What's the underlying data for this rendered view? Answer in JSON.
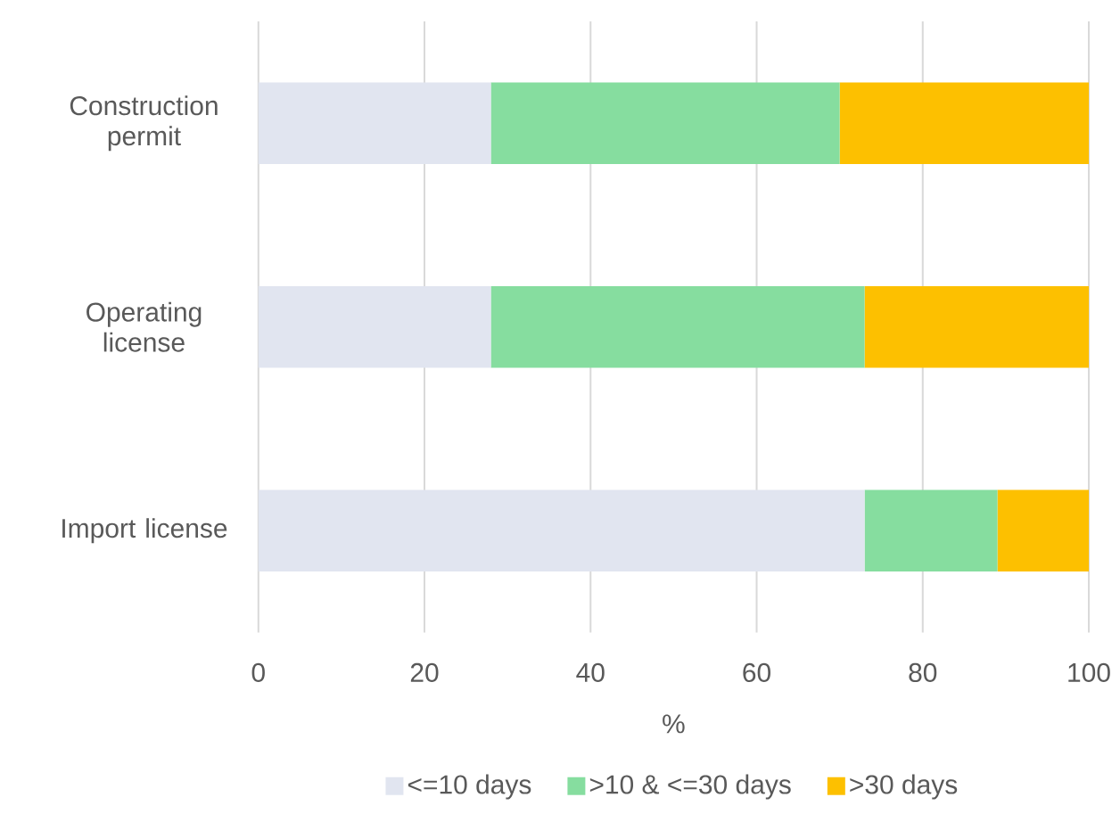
{
  "chart_data": {
    "type": "bar",
    "orientation": "horizontal",
    "stacked": true,
    "xlabel": "%",
    "categories": [
      "Construction permit",
      "Operating license",
      "Import license"
    ],
    "series": [
      {
        "name": "<=10 days",
        "color": "#e1e5f0",
        "values": [
          28,
          28,
          73
        ]
      },
      {
        "name": ">10 & <=30 days",
        "color": "#86dd9f",
        "values": [
          42,
          45,
          16
        ]
      },
      {
        "name": ">30 days",
        "color": "#fdc000",
        "values": [
          30,
          27,
          11
        ]
      }
    ],
    "xlim": [
      0,
      100
    ],
    "xticks": [
      0,
      20,
      40,
      60,
      80,
      100
    ],
    "grid": "x",
    "legend": "bottom"
  }
}
